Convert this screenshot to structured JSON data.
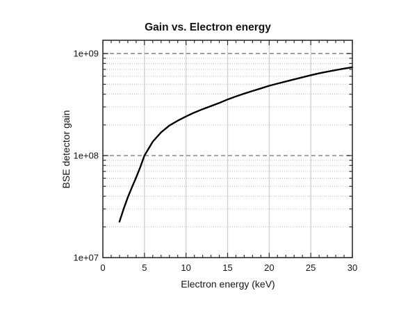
{
  "page": {
    "background": "#ffffff"
  },
  "chart_data": {
    "type": "line",
    "title": "Gain vs. Electron energy",
    "xlabel": "Electron energy (keV)",
    "ylabel": "BSE detector gain",
    "xlim": [
      0,
      30
    ],
    "ylim": [
      10000000.0,
      1350000000.0
    ],
    "y_scale": "log",
    "grid": true,
    "legend": "none",
    "x_major_ticks": [
      0,
      5,
      10,
      15,
      20,
      25,
      30
    ],
    "x_tick_labels": [
      "0",
      "5",
      "10",
      "15",
      "20",
      "25",
      "30"
    ],
    "x_minor_tick_step": 1,
    "y_major_ticks": [
      10000000.0,
      100000000.0,
      1000000000.0
    ],
    "y_tick_labels": [
      "1e+07",
      "1e+08",
      "1e+09"
    ],
    "y_minor_ticks": [
      20000000.0,
      30000000.0,
      40000000.0,
      50000000.0,
      60000000.0,
      70000000.0,
      80000000.0,
      90000000.0,
      200000000.0,
      300000000.0,
      400000000.0,
      500000000.0,
      600000000.0,
      700000000.0,
      800000000.0,
      900000000.0
    ],
    "vertical_gridlines_at": [
      5,
      10,
      15,
      20,
      25
    ],
    "dashed_gridlines_at": [
      100000000.0,
      1000000000.0
    ],
    "series": [
      {
        "name": "BSE detector gain",
        "color": "#000000",
        "x": [
          2,
          2.5,
          3,
          3.5,
          4,
          4.5,
          5,
          6,
          7,
          8,
          9,
          10,
          11,
          12,
          13,
          14,
          15,
          16,
          17,
          18,
          19,
          20,
          21,
          22,
          23,
          24,
          25,
          26,
          27,
          28,
          29,
          30
        ],
        "y": [
          22500000.0,
          30000000.0,
          39000000.0,
          49000000.0,
          61000000.0,
          77000000.0,
          100000000.0,
          137000000.0,
          169000000.0,
          197000000.0,
          220000000.0,
          242000000.0,
          264000000.0,
          285000000.0,
          306000000.0,
          328000000.0,
          355000000.0,
          380000000.0,
          405000000.0,
          430000000.0,
          456000000.0,
          484000000.0,
          508000000.0,
          533000000.0,
          559000000.0,
          586000000.0,
          614000000.0,
          640000000.0,
          665000000.0,
          689000000.0,
          712000000.0,
          735000000.0
        ]
      }
    ],
    "style": {
      "curve_color": "#000000",
      "frame_color": "#2e2e2e",
      "grid_major_color": "#949494",
      "grid_minor_color": "#c0c0c0",
      "grid_vertical_color": "#cdcdcd",
      "background": "#ffffff",
      "text_color": "#141414"
    }
  }
}
